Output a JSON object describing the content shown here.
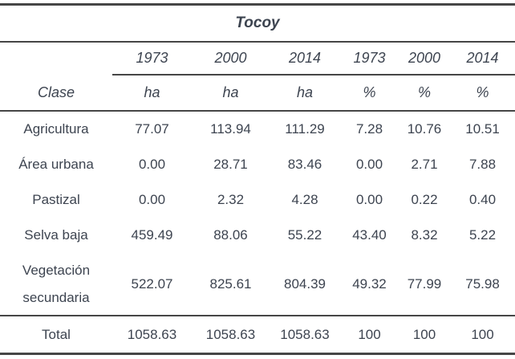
{
  "table": {
    "title": "Tocoy",
    "year_headers": [
      "1973",
      "2000",
      "2014",
      "1973",
      "2000",
      "2014"
    ],
    "unit_row": {
      "clase_label": "Clase",
      "units": [
        "ha",
        "ha",
        "ha",
        "%",
        "%",
        "%"
      ]
    },
    "rows": [
      {
        "clase": "Agricultura",
        "values": [
          "77.07",
          "113.94",
          "111.29",
          "7.28",
          "10.76",
          "10.51"
        ]
      },
      {
        "clase": "Área urbana",
        "values": [
          "0.00",
          "28.71",
          "83.46",
          "0.00",
          "2.71",
          "7.88"
        ]
      },
      {
        "clase": "Pastizal",
        "values": [
          "0.00",
          "2.32",
          "4.28",
          "0.00",
          "0.22",
          "0.40"
        ]
      },
      {
        "clase": "Selva baja",
        "values": [
          "459.49",
          "88.06",
          "55.22",
          "43.40",
          "8.32",
          "5.22"
        ]
      },
      {
        "clase": "Vegetación secundaria",
        "values": [
          "522.07",
          "825.61",
          "804.39",
          "49.32",
          "77.99",
          "75.98"
        ]
      }
    ],
    "total_row": {
      "clase": "Total",
      "values": [
        "1058.63",
        "1058.63",
        "1058.63",
        "100",
        "100",
        "100"
      ]
    }
  },
  "colors": {
    "text": "#3d4450",
    "rule": "#464646",
    "background": "#ffffff"
  }
}
